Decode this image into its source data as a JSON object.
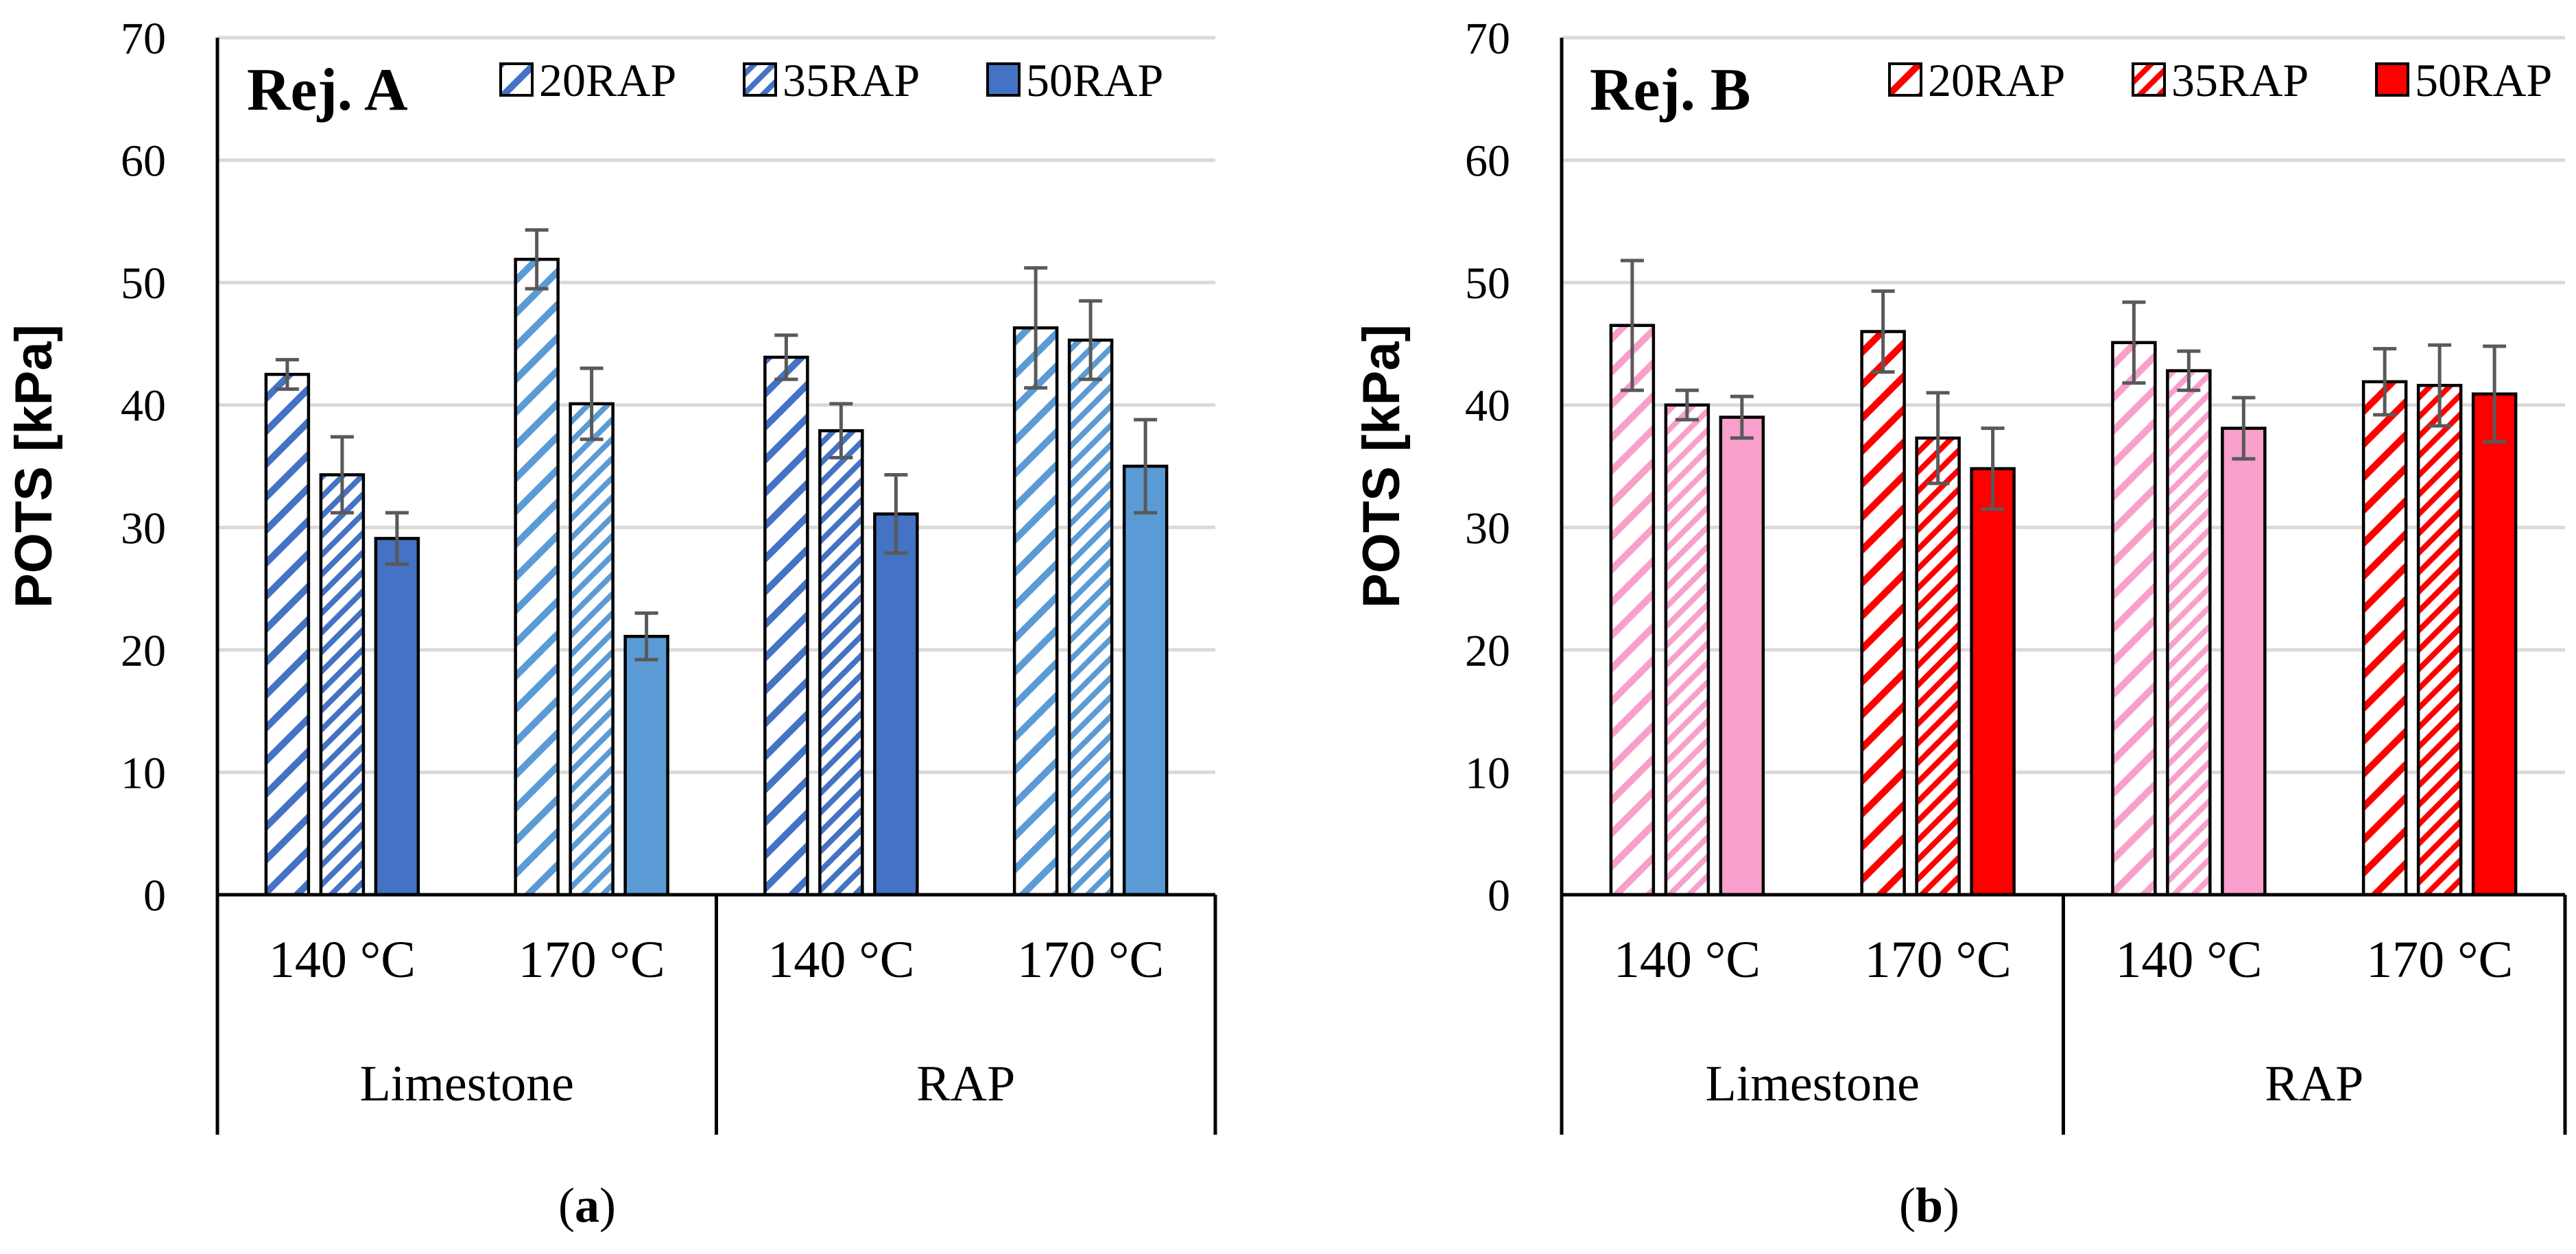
{
  "chart_data": [
    {
      "type": "bar",
      "title": "Rej. A",
      "caption_letter": "a",
      "ylabel": "POTS [kPa]",
      "ylim": [
        0,
        70
      ],
      "yticks": [
        0,
        10,
        20,
        30,
        40,
        50,
        60,
        70
      ],
      "groups": [
        "Limestone",
        "RAP"
      ],
      "categories": [
        "140 °C",
        "170 °C",
        "140 °C",
        "170 °C"
      ],
      "legend": [
        "20RAP",
        "35RAP",
        "50RAP"
      ],
      "colors": {
        "dark": "#4472C4",
        "light": "#5B9BD5"
      },
      "series": [
        {
          "name": "20RAP",
          "values": [
            42.5,
            51.9,
            43.9,
            46.3
          ],
          "err": [
            1.2,
            2.4,
            1.8,
            4.9
          ]
        },
        {
          "name": "35RAP",
          "values": [
            34.3,
            40.1,
            37.9,
            45.3
          ],
          "err": [
            3.1,
            2.9,
            2.2,
            3.2
          ]
        },
        {
          "name": "50RAP",
          "values": [
            29.1,
            21.1,
            31.1,
            35.0
          ],
          "err": [
            2.1,
            1.9,
            3.2,
            3.8
          ]
        }
      ]
    },
    {
      "type": "bar",
      "title": "Rej. B",
      "caption_letter": "b",
      "ylabel": "POTS [kPa]",
      "ylim": [
        0,
        70
      ],
      "yticks": [
        0,
        10,
        20,
        30,
        40,
        50,
        60,
        70
      ],
      "groups": [
        "Limestone",
        "RAP"
      ],
      "categories": [
        "140 °C",
        "170 °C",
        "140 °C",
        "170 °C"
      ],
      "legend": [
        "20RAP",
        "35RAP",
        "50RAP"
      ],
      "colors": {
        "dark": "#FF0000",
        "light": "#F89FCB"
      },
      "series": [
        {
          "name": "20RAP",
          "values": [
            46.5,
            46.0,
            45.1,
            41.9
          ],
          "err": [
            5.3,
            3.3,
            3.3,
            2.7
          ]
        },
        {
          "name": "35RAP",
          "values": [
            40.0,
            37.3,
            42.8,
            41.6
          ],
          "err": [
            1.2,
            3.7,
            1.6,
            3.3
          ]
        },
        {
          "name": "50RAP",
          "values": [
            39.0,
            34.8,
            38.1,
            40.9
          ],
          "err": [
            1.7,
            3.3,
            2.5,
            3.9
          ]
        }
      ]
    }
  ]
}
